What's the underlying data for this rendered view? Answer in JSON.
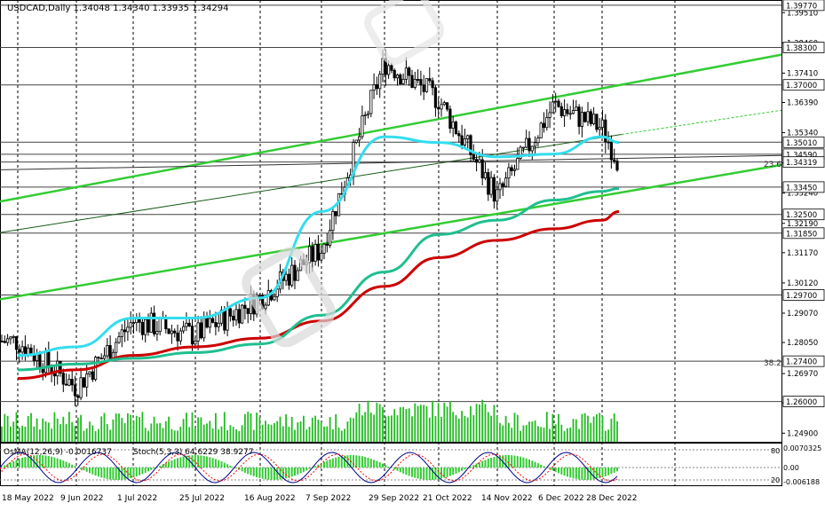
{
  "header": {
    "symbol_line": "USDCAD,Daily  1.34048 1.34340 1.33935 1.34294"
  },
  "indicator_header": {
    "osma_line": "OsMA(12,26,9) -0.0016737",
    "stoch_line": "Stoch(5,3,3) 64.6229 38.9277"
  },
  "fib_labels": [
    "23.6",
    "38.2"
  ],
  "colors": {
    "background": "#ffffff",
    "candle": "#000000",
    "ma_red": "#cc0000",
    "ma_teal": "#1fbf8f",
    "ma_cyan": "#33ddee",
    "channel_green": "#33cc33",
    "osma_green": "#33cc33",
    "stoch_main": "#000088",
    "stoch_signal": "#ff0000",
    "hline": "#555555"
  },
  "chart_data": {
    "type": "candlestick",
    "title": "USDCAD,Daily",
    "ohlc_header": {
      "open": 1.34048,
      "high": 1.3434,
      "low": 1.33935,
      "close": 1.34294
    },
    "ylim": [
      1.246,
      1.3995
    ],
    "y_tick_labels": [
      "1.39510",
      "1.38460",
      "1.37410",
      "1.36390",
      "1.35340",
      "1.34290",
      "1.33240",
      "1.32190",
      "1.31170",
      "1.30120",
      "1.29070",
      "1.28050",
      "1.26970",
      "1.25950",
      "1.24900"
    ],
    "x_tick_labels": [
      "18 May 2022",
      "9 Jun 2022",
      "1 Jul 2022",
      "25 Jul 2022",
      "16 Aug 2022",
      "7 Sep 2022",
      "29 Sep 2022",
      "21 Oct 2022",
      "14 Nov 2022",
      "6 Dec 2022",
      "28 Dec 2022"
    ],
    "key_levels": [
      {
        "label": "1.39770",
        "value": 1.3977
      },
      {
        "label": "1.38300",
        "value": 1.383
      },
      {
        "label": "1.37000",
        "value": 1.37
      },
      {
        "label": "1.35010",
        "value": 1.3501
      },
      {
        "label": "1.34590",
        "value": 1.3459
      },
      {
        "label": "1.34319",
        "value": 1.34319
      },
      {
        "label": "1.33450",
        "value": 1.3345
      },
      {
        "label": "1.32500",
        "value": 1.325
      },
      {
        "label": "1.31850",
        "value": 1.3185
      },
      {
        "label": "1.29700",
        "value": 1.297
      },
      {
        "label": "1.27400",
        "value": 1.274
      },
      {
        "label": "1.26000",
        "value": 1.26
      }
    ],
    "price_series_approx": [
      {
        "x": "18 May 2022",
        "close": 1.281
      },
      {
        "x": "9 Jun 2022",
        "close": 1.265
      },
      {
        "x": "1 Jul 2022",
        "close": 1.288
      },
      {
        "x": "25 Jul 2022",
        "close": 1.283
      },
      {
        "x": "16 Aug 2022",
        "close": 1.296
      },
      {
        "x": "7 Sep 2022",
        "close": 1.313
      },
      {
        "x": "29 Sep 2022",
        "close": 1.378
      },
      {
        "x": "21 Oct 2022",
        "close": 1.365
      },
      {
        "x": "14 Nov 2022",
        "close": 1.331
      },
      {
        "x": "6 Dec 2022",
        "close": 1.363
      },
      {
        "x": "28 Dec 2022",
        "close": 1.355
      },
      {
        "x": "last",
        "close": 1.343
      }
    ],
    "moving_averages": [
      {
        "name": "MA red",
        "color": "#cc0000",
        "points": [
          [
            1.268
          ],
          [
            1.271
          ],
          [
            1.276
          ],
          [
            1.279
          ],
          [
            1.282
          ],
          [
            1.288
          ],
          [
            1.3
          ],
          [
            1.31
          ],
          [
            1.316
          ],
          [
            1.32
          ],
          [
            1.323
          ],
          [
            1.326
          ]
        ]
      },
      {
        "name": "MA teal",
        "color": "#1fbf8f",
        "points": [
          [
            1.271
          ],
          [
            1.273
          ],
          [
            1.275
          ],
          [
            1.277
          ],
          [
            1.28
          ],
          [
            1.29
          ],
          [
            1.305
          ],
          [
            1.318
          ],
          [
            1.323
          ],
          [
            1.33
          ],
          [
            1.333
          ],
          [
            1.334
          ]
        ]
      },
      {
        "name": "MA cyan",
        "color": "#33ddee",
        "points": [
          [
            1.276
          ],
          [
            1.279
          ],
          [
            1.289
          ],
          [
            1.289
          ],
          [
            1.296
          ],
          [
            1.326
          ],
          [
            1.352
          ],
          [
            1.35
          ],
          [
            1.345
          ],
          [
            1.346
          ],
          [
            1.352
          ],
          [
            1.35
          ]
        ]
      }
    ],
    "stoch_levels": [
      "80",
      "20"
    ],
    "osma_levels": [
      "0.0070325",
      "0.00",
      "-0.006188"
    ]
  }
}
